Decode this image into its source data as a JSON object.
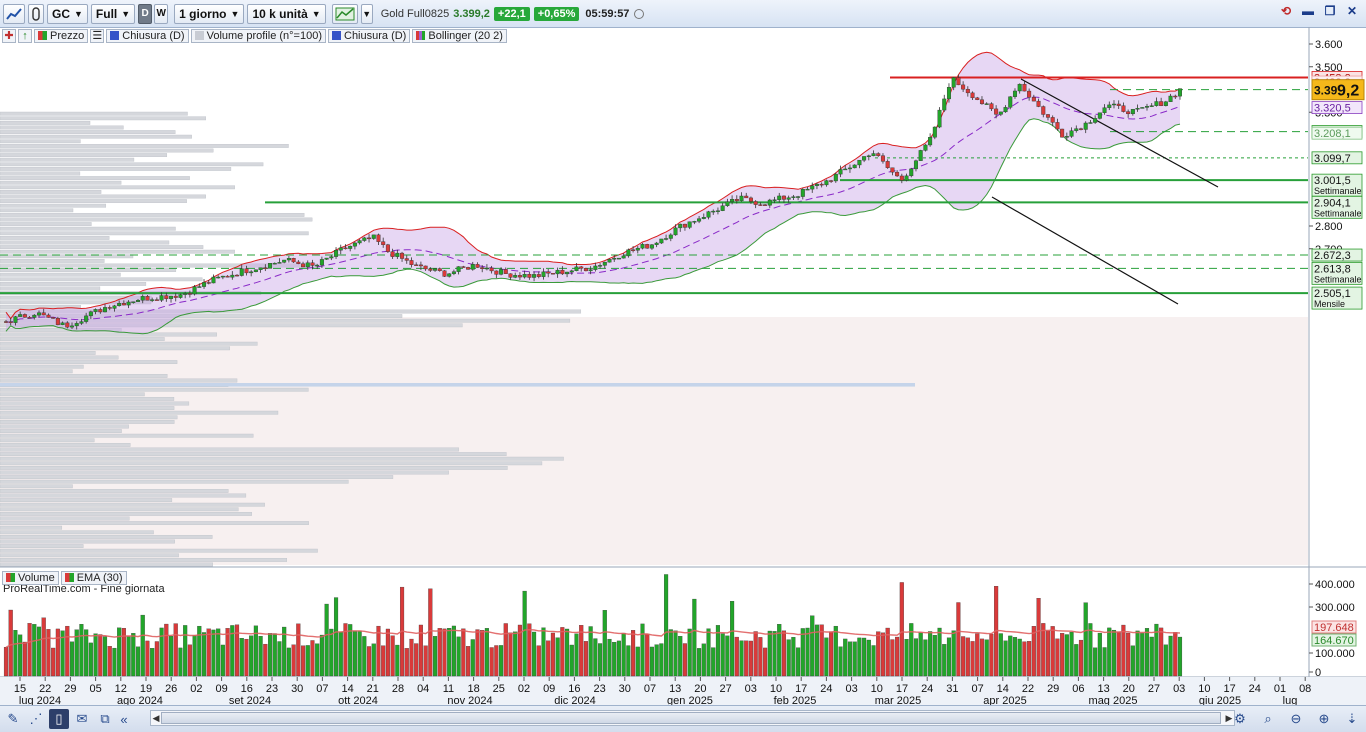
{
  "toolbar": {
    "symbol": "GC",
    "view_mode": "Full",
    "btn_d": "D",
    "btn_w": "W",
    "timeframe": "1 giorno",
    "units": "10 k unità",
    "instrument_name": "Gold Full0825",
    "last_price": "3.399,2",
    "change_abs": "+22,1",
    "change_pct": "+0,65%",
    "time": "05:59:57"
  },
  "legend_price": {
    "price": "Prezzo",
    "close1": "Chiusura (D)",
    "volume_profile": "Volume profile (n°=100)",
    "close2": "Chiusura (D)",
    "bollinger": "Bollinger (20 2)"
  },
  "legend_volume": {
    "volume": "Volume",
    "ema": "EMA (30)"
  },
  "source_note": "ProRealTime.com - Fine giornata",
  "price_axis": {
    "ticks": [
      "3.600",
      "3.500",
      "3.300",
      "2.800",
      "2.700"
    ],
    "labels": [
      {
        "value": "3.453,2",
        "sub": "Settimanale",
        "type": "red"
      },
      {
        "value": "3.432,8",
        "sub": "",
        "type": "redlight"
      },
      {
        "value": "3.320,5",
        "sub": "",
        "type": "purple"
      },
      {
        "value": "3.215,1",
        "sub": "",
        "type": "green"
      },
      {
        "value": "3.208,1",
        "sub": "",
        "type": "greenlight"
      },
      {
        "value": "3.099,7",
        "sub": "",
        "type": "green"
      },
      {
        "value": "3.001,5",
        "sub": "Settimanale",
        "type": "green"
      },
      {
        "value": "2.904,1",
        "sub": "Settimanale",
        "type": "green"
      },
      {
        "value": "2.672,3",
        "sub": "",
        "type": "green"
      },
      {
        "value": "2.613,8",
        "sub": "Settimanale",
        "type": "green"
      },
      {
        "value": "2.505,1",
        "sub": "Mensile",
        "type": "green"
      }
    ],
    "current_price_a": "3.39",
    "current_price_b": "9,2"
  },
  "volume_axis": {
    "ticks": [
      "400.000",
      "300.000",
      "100.000",
      "0"
    ],
    "ema_label": "197.648",
    "vol_label": "164.670"
  },
  "dates": {
    "days": [
      "15",
      "22",
      "29",
      "05",
      "12",
      "19",
      "26",
      "02",
      "09",
      "16",
      "23",
      "30",
      "07",
      "14",
      "21",
      "28",
      "04",
      "11",
      "18",
      "25",
      "02",
      "09",
      "16",
      "23",
      "30",
      "07",
      "13",
      "20",
      "27",
      "03",
      "10",
      "17",
      "24",
      "03",
      "10",
      "17",
      "24",
      "31",
      "07",
      "14",
      "22",
      "29",
      "06",
      "13",
      "20",
      "27",
      "03",
      "10",
      "17",
      "24",
      "01",
      "08"
    ],
    "months": [
      "lug 2024",
      "ago 2024",
      "set 2024",
      "ott 2024",
      "nov 2024",
      "dic 2024",
      "gen 2025",
      "feb 2025",
      "mar 2025",
      "apr 2025",
      "mag 2025",
      "giu 2025",
      "lug"
    ]
  },
  "colors": {
    "up": "#22a52a",
    "down": "#d93a3a",
    "band": "#c9a6e6",
    "sr_green": "#27a03a",
    "sr_red": "#d92020"
  }
}
